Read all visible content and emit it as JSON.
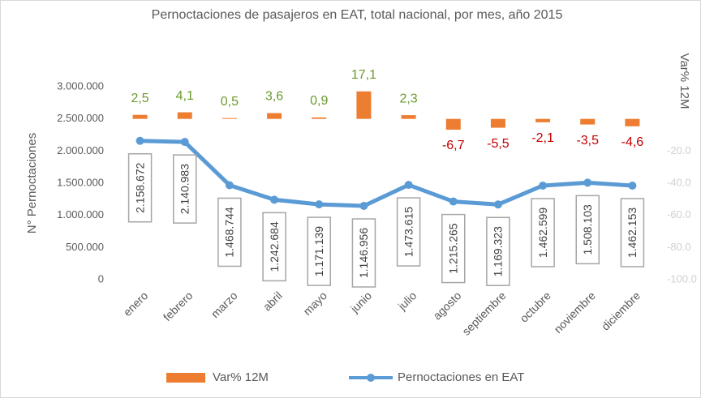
{
  "chart_data": {
    "type": "bar-line",
    "title": "Pernoctaciones de pasajeros en EAT, total nacional, por mes, año 2015",
    "ylabel": "N° Pernoctaciones",
    "y2label": "Var% 12M",
    "categories": [
      "enero",
      "febrero",
      "marzo",
      "abril",
      "mayo",
      "junio",
      "julio",
      "agosto",
      "septiembre",
      "octubre",
      "noviembre",
      "diciembre"
    ],
    "series": [
      {
        "name": "Var% 12M",
        "type": "bar",
        "axis": "y2",
        "color": "#ed7d31",
        "values": [
          2.5,
          4.1,
          0.5,
          3.6,
          0.9,
          17.1,
          2.3,
          -6.7,
          -5.5,
          -2.1,
          -3.5,
          -4.6
        ],
        "value_labels": [
          "2,5",
          "4,1",
          "0,5",
          "3,6",
          "0,9",
          "17,1",
          "2,3",
          "-6,7",
          "-5,5",
          "-2,1",
          "-3,5",
          "-4,6"
        ],
        "positive_label_color": "#6a9a2e",
        "negative_label_color": "#c00000"
      },
      {
        "name": "Pernoctaciones en EAT",
        "type": "line",
        "color": "#5b9bd5",
        "values": [
          2158672,
          2140983,
          1468744,
          1242684,
          1171139,
          1146956,
          1473615,
          1215265,
          1169323,
          1462599,
          1508103,
          1462153
        ],
        "value_labels": [
          "2.158.672",
          "2.140.983",
          "1.468.744",
          "1.242.684",
          "1.171.139",
          "1.146.956",
          "1.473.615",
          "1.215.265",
          "1.169.323",
          "1.462.599",
          "1.508.103",
          "1.462.153"
        ]
      }
    ],
    "ylim": [
      0,
      3000000
    ],
    "yticks": [
      0,
      {
        "value": 500000,
        "label": "500.000"
      },
      {
        "value": 1000000,
        "label": "1.000.000"
      },
      {
        "value": 1500000,
        "label": "1.500.000"
      },
      {
        "value": 2000000,
        "label": "2.000.000"
      },
      {
        "value": 2500000,
        "label": "2.500.000"
      },
      {
        "value": 3000000,
        "label": "3.000.000"
      }
    ],
    "y2lim": [
      -100,
      20
    ],
    "y2ticks": [
      {
        "value": -20,
        "label": "-20.0"
      },
      {
        "value": -40,
        "label": "-40.0"
      },
      {
        "value": -60,
        "label": "-60.0"
      },
      {
        "value": -80,
        "label": "-80.0"
      },
      {
        "value": -100,
        "label": "-100.0"
      }
    ],
    "legend": "bottom"
  }
}
